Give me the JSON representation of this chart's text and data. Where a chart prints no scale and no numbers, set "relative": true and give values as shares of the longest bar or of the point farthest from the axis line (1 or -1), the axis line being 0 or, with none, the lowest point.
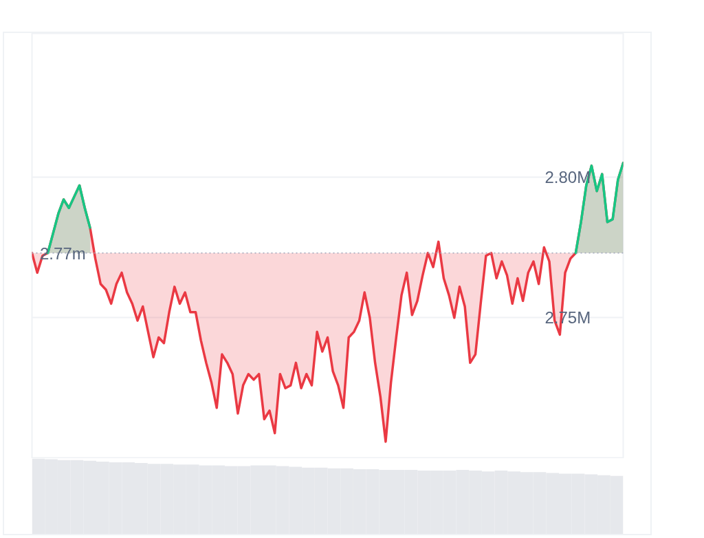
{
  "chart_data": [
    {
      "type": "area",
      "categories": [
        null,
        null,
        null,
        null,
        null,
        null,
        null,
        null,
        null,
        null,
        null,
        null,
        null,
        null,
        null,
        null,
        null,
        null,
        null,
        null,
        null,
        null,
        null,
        null,
        null,
        null,
        null,
        null,
        null,
        null,
        null,
        null,
        null,
        null,
        null,
        null,
        null,
        null,
        null,
        null,
        null,
        null,
        null,
        null,
        null,
        null,
        null,
        null,
        null,
        null,
        null,
        null,
        null,
        null,
        null,
        null,
        null,
        null,
        null,
        null,
        null,
        null,
        null,
        null,
        null,
        null,
        null,
        null,
        null,
        null,
        null,
        null,
        null,
        null,
        null,
        null,
        null,
        null,
        null,
        null,
        null,
        null,
        null,
        null,
        null,
        null,
        null,
        null,
        null,
        null,
        null,
        null,
        null,
        null,
        null,
        null,
        null,
        null,
        null,
        null,
        null,
        null,
        null,
        null,
        null,
        null,
        null,
        null,
        null,
        null,
        null,
        null,
        null
      ],
      "series": [
        {
          "color": "#ea3943",
          "values": [
            2.773,
            2.766,
            2.772,
            2.773,
            2.78,
            2.787,
            2.792,
            2.789,
            2.793,
            2.797,
            2.789,
            2.782,
            2.771,
            2.762,
            2.76,
            2.755,
            2.762,
            2.766,
            2.759,
            2.755,
            2.749,
            2.754,
            2.745,
            2.736,
            2.743,
            2.741,
            2.752,
            2.761,
            2.755,
            2.759,
            2.752,
            2.752,
            2.742,
            2.734,
            2.727,
            2.718,
            2.737,
            2.734,
            2.73,
            2.716,
            2.726,
            2.73,
            2.728,
            2.73,
            2.714,
            2.717,
            2.709,
            2.73,
            2.725,
            2.726,
            2.734,
            2.725,
            2.73,
            2.726,
            2.745,
            2.738,
            2.743,
            2.731,
            2.726,
            2.718,
            2.743,
            2.745,
            2.749,
            2.759,
            2.75,
            2.734,
            2.722,
            2.706,
            2.727,
            2.743,
            2.758,
            2.766,
            2.751,
            2.756,
            2.765,
            2.773,
            2.768,
            2.777,
            2.764,
            2.758,
            2.75,
            2.761,
            2.754,
            2.734,
            2.737,
            2.755,
            2.772,
            2.773,
            2.764,
            2.77,
            2.765,
            2.755,
            2.764,
            2.756,
            2.766,
            2.77,
            2.762,
            2.775,
            2.77,
            2.749,
            2.744,
            2.766,
            2.771,
            2.773,
            2.784,
            2.797,
            2.804,
            2.795,
            2.801,
            2.784,
            2.785,
            2.799,
            2.805
          ]
        },
        {
          "color": "#16c784",
          "values": [
            null,
            null,
            null,
            2.773,
            2.78,
            2.787,
            2.792,
            2.789,
            2.793,
            2.797,
            2.789,
            2.782,
            null,
            null,
            null,
            null,
            null,
            null,
            null,
            null,
            null,
            null,
            null,
            null,
            null,
            null,
            null,
            null,
            null,
            null,
            null,
            null,
            null,
            null,
            null,
            null,
            null,
            null,
            null,
            null,
            null,
            null,
            null,
            null,
            null,
            null,
            null,
            null,
            null,
            null,
            null,
            null,
            null,
            null,
            null,
            null,
            null,
            null,
            null,
            null,
            null,
            null,
            null,
            null,
            null,
            null,
            null,
            null,
            null,
            null,
            null,
            null,
            null,
            null,
            null,
            null,
            null,
            null,
            null,
            null,
            null,
            null,
            null,
            null,
            null,
            null,
            null,
            null,
            null,
            null,
            null,
            null,
            null,
            null,
            null,
            null,
            null,
            null,
            null,
            null,
            null,
            null,
            null,
            2.773,
            2.784,
            2.797,
            2.804,
            2.795,
            2.801,
            2.784,
            2.785,
            2.799,
            2.805
          ]
        }
      ],
      "ylim": [
        2.7,
        2.851
      ],
      "yticks": [
        {
          "value": 2.75,
          "label": "2.75M"
        },
        {
          "value": 2.8,
          "label": "2.80M"
        }
      ],
      "ref_lines": [
        {
          "axis": "y",
          "value": 2.773,
          "label": "2.77m",
          "color": "#a1a7bb",
          "line_style": "dotted"
        }
      ],
      "grid": "y",
      "tick_labels": "y"
    },
    {
      "type": "bar",
      "relative": true,
      "color": "#e6e8ec",
      "tick_labels": false,
      "categories": [
        null,
        null,
        null,
        null,
        null,
        null,
        null,
        null,
        null,
        null,
        null,
        null,
        null,
        null,
        null,
        null,
        null,
        null,
        null,
        null,
        null,
        null,
        null,
        null,
        null,
        null,
        null,
        null,
        null,
        null,
        null,
        null,
        null,
        null,
        null,
        null,
        null,
        null,
        null,
        null,
        null,
        null,
        null,
        null,
        null,
        null
      ],
      "values": [
        1.0,
        0.99,
        0.98,
        0.98,
        0.97,
        0.96,
        0.95,
        0.95,
        0.94,
        0.93,
        0.93,
        0.92,
        0.92,
        0.91,
        0.91,
        0.9,
        0.9,
        0.91,
        0.91,
        0.9,
        0.89,
        0.88,
        0.88,
        0.87,
        0.87,
        0.86,
        0.86,
        0.85,
        0.85,
        0.85,
        0.84,
        0.84,
        0.84,
        0.85,
        0.84,
        0.83,
        0.84,
        0.83,
        0.82,
        0.82,
        0.81,
        0.8,
        0.8,
        0.79,
        0.78,
        0.77
      ]
    }
  ]
}
